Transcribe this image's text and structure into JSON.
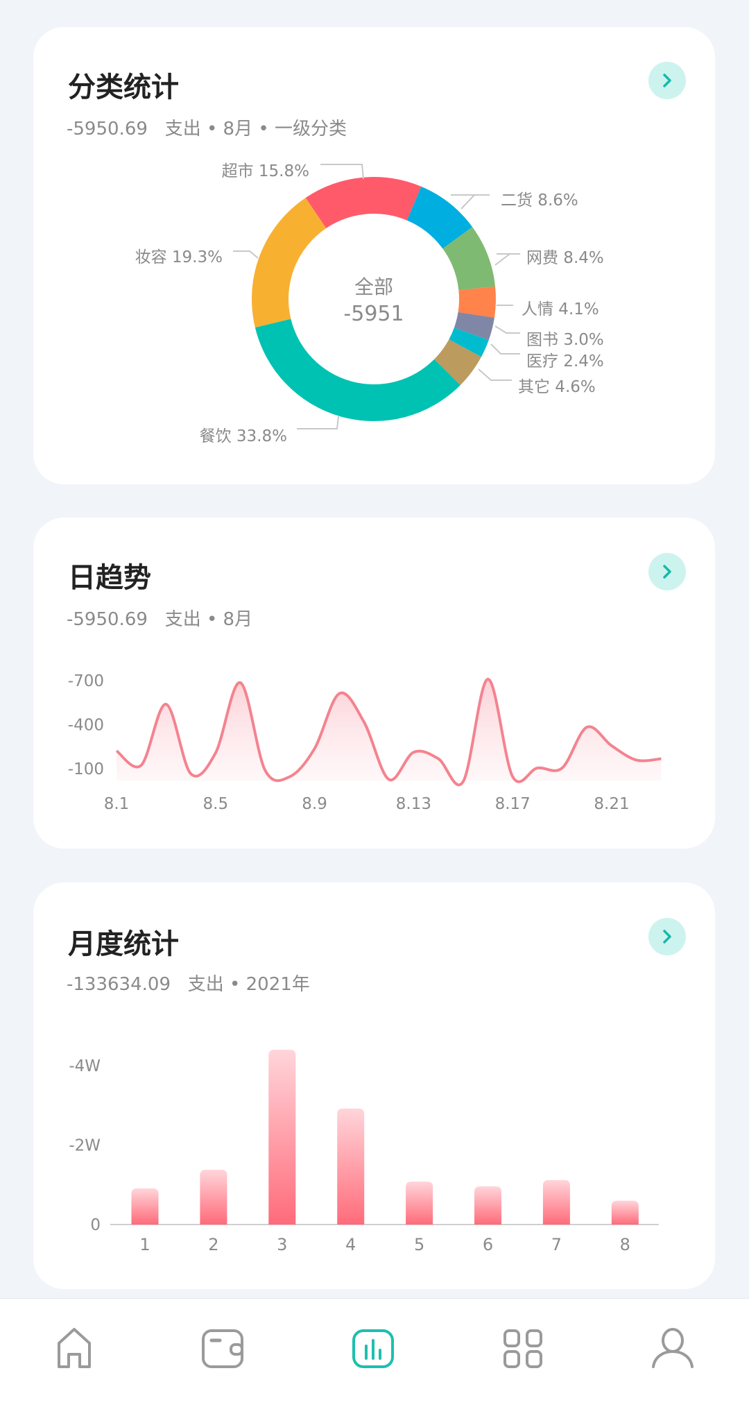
{
  "category_card": {
    "title": "分类统计",
    "subtitle": "-5950.69   支出 • 8月 • 一级分类",
    "center_label": "全部",
    "center_value": "-5951"
  },
  "daily_card": {
    "title": "日趋势",
    "subtitle": "-5950.69   支出 • 8月"
  },
  "monthly_card": {
    "title": "月度统计",
    "subtitle": "-133634.09   支出 • 2021年"
  },
  "nav": {
    "items": [
      "home-icon",
      "wallet-icon",
      "chart-icon",
      "grid-icon",
      "user-icon"
    ],
    "active": "chart-icon",
    "active_color": "#1dbfae",
    "inactive_color": "#9a9a9a"
  },
  "chart_data": [
    {
      "type": "pie",
      "donut": true,
      "slices": [
        {
          "label": "超市 15.8%",
          "name": "超市",
          "value": 15.8,
          "color": "#ff5a6a"
        },
        {
          "label": "二货 8.6%",
          "name": "二货",
          "value": 8.6,
          "color": "#00aee0"
        },
        {
          "label": "网费 8.4%",
          "name": "网费",
          "value": 8.4,
          "color": "#7fba72"
        },
        {
          "label": "人情 4.1%",
          "name": "人情",
          "value": 4.1,
          "color": "#ff834a"
        },
        {
          "label": "图书 3.0%",
          "name": "图书",
          "value": 3.0,
          "color": "#8086a6"
        },
        {
          "label": "医疗 2.4%",
          "name": "医疗",
          "value": 2.4,
          "color": "#00bcce"
        },
        {
          "label": "其它 4.6%",
          "name": "其它",
          "value": 4.6,
          "color": "#bb9b5e"
        },
        {
          "label": "餐饮 33.8%",
          "name": "餐饮",
          "value": 33.8,
          "color": "#00c2b2"
        },
        {
          "label": "妆容 19.3%",
          "name": "妆容",
          "value": 19.3,
          "color": "#f8b031"
        }
      ]
    },
    {
      "type": "area",
      "x": [
        "8.1",
        "8.2",
        "8.3",
        "8.4",
        "8.5",
        "8.6",
        "8.7",
        "8.8",
        "8.9",
        "8.10",
        "8.11",
        "8.12",
        "8.13",
        "8.14",
        "8.15",
        "8.16",
        "8.17",
        "8.18",
        "8.19",
        "8.20",
        "8.21",
        "8.22",
        "8.23"
      ],
      "values": [
        -222,
        -124,
        -539,
        -66,
        -207,
        -686,
        -90,
        -46,
        -237,
        -612,
        -417,
        -27,
        -212,
        -168,
        -12,
        -710,
        -46,
        -105,
        -105,
        -383,
        -256,
        -159,
        -168
      ],
      "x_tick_labels": [
        "8.1",
        "8.5",
        "8.9",
        "8.13",
        "8.17",
        "8.21"
      ],
      "y_tick_labels": [
        "-700",
        "-400",
        "-100"
      ],
      "line_color": "#f4838f",
      "smooth": true
    },
    {
      "type": "bar",
      "categories": [
        "1",
        "2",
        "3",
        "4",
        "5",
        "6",
        "7",
        "8"
      ],
      "values": [
        -9100,
        -13800,
        -44000,
        -29200,
        -10800,
        -9600,
        -11200,
        -6000
      ],
      "y_tick_labels": [
        "-4W",
        "-2W",
        "0"
      ],
      "bar_color_top": "#ffd5da",
      "bar_color_bottom": "#ff6b7a"
    }
  ]
}
